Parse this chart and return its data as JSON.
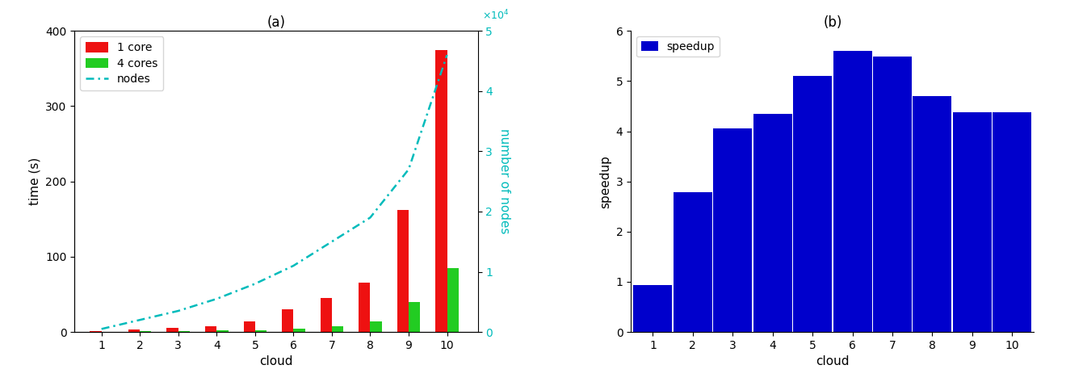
{
  "clouds": [
    1,
    2,
    3,
    4,
    5,
    6,
    7,
    8,
    9,
    10
  ],
  "time_1core": [
    1.0,
    3.0,
    5.5,
    8.0,
    14.0,
    30.0,
    45.0,
    65.0,
    162.0,
    375.0
  ],
  "time_4cores": [
    0.0,
    0.8,
    1.5,
    2.0,
    2.5,
    4.5,
    7.5,
    14.0,
    40.0,
    85.0
  ],
  "nodes": [
    500,
    2000,
    3500,
    5500,
    8000,
    11000,
    15000,
    19000,
    27000,
    46000
  ],
  "speedup_values": [
    0.93,
    2.78,
    4.05,
    4.35,
    5.1,
    5.6,
    5.49,
    4.7,
    4.38,
    4.38
  ],
  "color_1core": "#EE1111",
  "color_4cores": "#22CC22",
  "color_nodes": "#00BBBB",
  "color_speedup": "#0000CC",
  "title_a": "(a)",
  "title_b": "(b)",
  "xlabel_a": "cloud",
  "xlabel_b": "cloud",
  "ylabel_a": "time (s)",
  "ylabel_a2": "number of nodes",
  "ylabel_b": "speedup",
  "ylim_a": [
    0,
    400
  ],
  "ylim_a2": [
    0,
    50000
  ],
  "ylim_b": [
    0,
    6
  ],
  "yticks_a": [
    0,
    100,
    200,
    300,
    400
  ],
  "yticks_b": [
    0,
    1,
    2,
    3,
    4,
    5,
    6
  ],
  "yticks_a2": [
    0,
    10000,
    20000,
    30000,
    40000,
    50000
  ],
  "legend_1core": "1 core",
  "legend_4cores": "4 cores",
  "legend_nodes": "nodes",
  "legend_speedup": "speedup"
}
